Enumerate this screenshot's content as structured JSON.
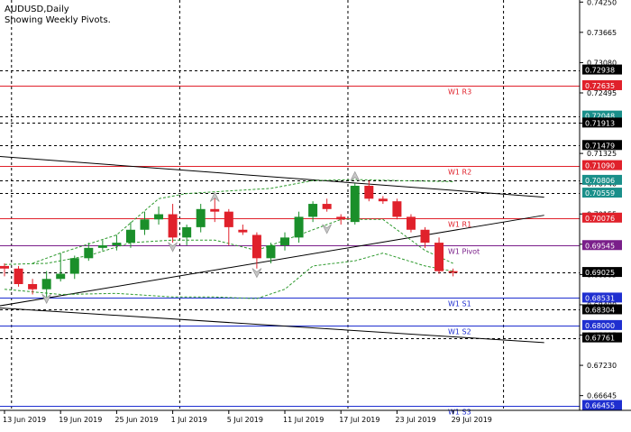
{
  "header": {
    "symbol": "AUDUSD,Daily",
    "subtitle": "Showing Weekly Pivots."
  },
  "colors": {
    "background": "#ffffff",
    "bull": "#1a8f2a",
    "bear": "#e0212b",
    "pivot_line": "#7a1f8a",
    "resistance_line": "#e0212b",
    "support_line": "#1f2fd0",
    "trend_line": "#000000",
    "envelope": "#2e9a2e",
    "grid": "#000000",
    "fractal": "#9a9a9a",
    "axis_text": "#000000"
  },
  "chart_data": {
    "type": "candlestick",
    "title": "AUDUSD,Daily",
    "ylim": [
      0.6636,
      0.7429
    ],
    "y_ticks": [
      "0.74250",
      "0.73665",
      "0.73080",
      "0.72495",
      "0.71910",
      "0.71325",
      "0.70740",
      "0.70155",
      "0.69570",
      "0.68985",
      "0.68400",
      "0.67815",
      "0.67230",
      "0.66645"
    ],
    "x_ticks": [
      {
        "label": "13 Jun 2019",
        "bar": 0
      },
      {
        "label": "19 Jun 2019",
        "bar": 4
      },
      {
        "label": "25 Jun 2019",
        "bar": 8
      },
      {
        "label": "1 Jul 2019",
        "bar": 12
      },
      {
        "label": "5 Jul 2019",
        "bar": 16
      },
      {
        "label": "11 Jul 2019",
        "bar": 20
      },
      {
        "label": "17 Jul 2019",
        "bar": 24
      },
      {
        "label": "23 Jul 2019",
        "bar": 28
      },
      {
        "label": "29 Jul 2019",
        "bar": 32
      }
    ],
    "grid_verticals_bars": [
      0.5,
      12.5,
      24.5
    ],
    "candles": [
      {
        "o": 0.6915,
        "h": 0.692,
        "l": 0.6895,
        "c": 0.691
      },
      {
        "o": 0.691,
        "h": 0.6915,
        "l": 0.6875,
        "c": 0.688
      },
      {
        "o": 0.688,
        "h": 0.689,
        "l": 0.686,
        "c": 0.687
      },
      {
        "o": 0.687,
        "h": 0.6905,
        "l": 0.6855,
        "c": 0.689
      },
      {
        "o": 0.689,
        "h": 0.694,
        "l": 0.6885,
        "c": 0.69
      },
      {
        "o": 0.69,
        "h": 0.6935,
        "l": 0.689,
        "c": 0.693
      },
      {
        "o": 0.693,
        "h": 0.696,
        "l": 0.6925,
        "c": 0.695
      },
      {
        "o": 0.695,
        "h": 0.6965,
        "l": 0.6945,
        "c": 0.6955
      },
      {
        "o": 0.6955,
        "h": 0.6975,
        "l": 0.6945,
        "c": 0.696
      },
      {
        "o": 0.696,
        "h": 0.7,
        "l": 0.695,
        "c": 0.6985
      },
      {
        "o": 0.6985,
        "h": 0.702,
        "l": 0.6975,
        "c": 0.7005
      },
      {
        "o": 0.7005,
        "h": 0.703,
        "l": 0.6995,
        "c": 0.7015
      },
      {
        "o": 0.7015,
        "h": 0.7035,
        "l": 0.696,
        "c": 0.697
      },
      {
        "o": 0.697,
        "h": 0.6995,
        "l": 0.6955,
        "c": 0.699
      },
      {
        "o": 0.699,
        "h": 0.7035,
        "l": 0.698,
        "c": 0.7025
      },
      {
        "o": 0.7025,
        "h": 0.705,
        "l": 0.7,
        "c": 0.702
      },
      {
        "o": 0.702,
        "h": 0.7025,
        "l": 0.6955,
        "c": 0.699
      },
      {
        "o": 0.6985,
        "h": 0.6995,
        "l": 0.6975,
        "c": 0.698
      },
      {
        "o": 0.6975,
        "h": 0.698,
        "l": 0.691,
        "c": 0.693
      },
      {
        "o": 0.693,
        "h": 0.696,
        "l": 0.692,
        "c": 0.6955
      },
      {
        "o": 0.6955,
        "h": 0.698,
        "l": 0.6945,
        "c": 0.697
      },
      {
        "o": 0.697,
        "h": 0.702,
        "l": 0.696,
        "c": 0.701
      },
      {
        "o": 0.701,
        "h": 0.704,
        "l": 0.7,
        "c": 0.7035
      },
      {
        "o": 0.7035,
        "h": 0.7045,
        "l": 0.702,
        "c": 0.7025
      },
      {
        "o": 0.701,
        "h": 0.7015,
        "l": 0.6995,
        "c": 0.7005
      },
      {
        "o": 0.7,
        "h": 0.7075,
        "l": 0.6995,
        "c": 0.707
      },
      {
        "o": 0.707,
        "h": 0.708,
        "l": 0.704,
        "c": 0.7045
      },
      {
        "o": 0.7045,
        "h": 0.705,
        "l": 0.7035,
        "c": 0.704
      },
      {
        "o": 0.704,
        "h": 0.7045,
        "l": 0.7005,
        "c": 0.701
      },
      {
        "o": 0.701,
        "h": 0.7015,
        "l": 0.698,
        "c": 0.6985
      },
      {
        "o": 0.6985,
        "h": 0.699,
        "l": 0.695,
        "c": 0.696
      },
      {
        "o": 0.696,
        "h": 0.697,
        "l": 0.69,
        "c": 0.6905
      },
      {
        "o": 0.6905,
        "h": 0.691,
        "l": 0.6895,
        "c": 0.6902
      }
    ],
    "pivot_levels": [
      {
        "name": "W1 R3",
        "value": 0.72635,
        "kind": "resistance"
      },
      {
        "name": "W1 R2",
        "value": 0.7109,
        "kind": "resistance"
      },
      {
        "name": "W1 R1",
        "value": 0.70076,
        "kind": "resistance"
      },
      {
        "name": "W1 Pivot",
        "value": 0.69545,
        "kind": "pivot"
      },
      {
        "name": "W1 S1",
        "value": 0.68531,
        "kind": "support"
      },
      {
        "name": "W1 S2",
        "value": 0.68,
        "kind": "support"
      },
      {
        "name": "W1 S3",
        "value": 0.66455,
        "kind": "support"
      }
    ],
    "dashed_levels": [
      {
        "value": 0.72938,
        "tag": "0.72938"
      },
      {
        "value": 0.72048,
        "tag": "0.72048"
      },
      {
        "value": 0.71913,
        "tag": "0.71913"
      },
      {
        "value": 0.71479,
        "tag": "0.71479"
      },
      {
        "value": 0.70806,
        "tag": "0.70806"
      },
      {
        "value": 0.70559,
        "tag": "0.70559"
      },
      {
        "value": 0.69025,
        "tag": "0.69025"
      },
      {
        "value": 0.68304,
        "tag": "0.68304"
      },
      {
        "value": 0.67761,
        "tag": "0.67761"
      }
    ],
    "trend_lines": [
      {
        "from": {
          "bar": -1,
          "value": 0.7128
        },
        "to": {
          "bar": 38.5,
          "value": 0.7048
        }
      },
      {
        "from": {
          "bar": -1,
          "value": 0.6835
        },
        "to": {
          "bar": 38.5,
          "value": 0.7013
        }
      },
      {
        "from": {
          "bar": -1,
          "value": 0.6835
        },
        "to": {
          "bar": 38.5,
          "value": 0.6767
        }
      }
    ],
    "envelope_upper": [
      {
        "bar": 2,
        "value": 0.692
      },
      {
        "bar": 4,
        "value": 0.694
      },
      {
        "bar": 8,
        "value": 0.6975
      },
      {
        "bar": 11,
        "value": 0.7045
      },
      {
        "bar": 13,
        "value": 0.7055
      },
      {
        "bar": 16,
        "value": 0.706
      },
      {
        "bar": 19,
        "value": 0.7065
      },
      {
        "bar": 22,
        "value": 0.708
      },
      {
        "bar": 25,
        "value": 0.7082
      },
      {
        "bar": 28,
        "value": 0.708
      },
      {
        "bar": 32,
        "value": 0.7078
      }
    ],
    "envelope_lower": [
      {
        "bar": 0,
        "value": 0.687
      },
      {
        "bar": 4,
        "value": 0.686
      },
      {
        "bar": 8,
        "value": 0.6862
      },
      {
        "bar": 12,
        "value": 0.6855
      },
      {
        "bar": 15,
        "value": 0.6855
      },
      {
        "bar": 18,
        "value": 0.6852
      },
      {
        "bar": 20,
        "value": 0.687
      },
      {
        "bar": 22,
        "value": 0.6915
      },
      {
        "bar": 25,
        "value": 0.6925
      },
      {
        "bar": 27,
        "value": 0.694
      },
      {
        "bar": 30,
        "value": 0.6915
      },
      {
        "bar": 32,
        "value": 0.6905
      }
    ],
    "envelope_middle": [
      {
        "bar": 0,
        "value": 0.6918
      },
      {
        "bar": 3,
        "value": 0.692
      },
      {
        "bar": 6,
        "value": 0.6935
      },
      {
        "bar": 9,
        "value": 0.696
      },
      {
        "bar": 12,
        "value": 0.6965
      },
      {
        "bar": 15,
        "value": 0.6965
      },
      {
        "bar": 18,
        "value": 0.6945
      },
      {
        "bar": 21,
        "value": 0.6975
      },
      {
        "bar": 24,
        "value": 0.7005
      },
      {
        "bar": 27,
        "value": 0.7005
      },
      {
        "bar": 30,
        "value": 0.6945
      },
      {
        "bar": 32,
        "value": 0.692
      }
    ],
    "fractals": [
      {
        "bar": 3,
        "value": 0.685,
        "dir": "down"
      },
      {
        "bar": 12,
        "value": 0.695,
        "dir": "down"
      },
      {
        "bar": 15,
        "value": 0.705,
        "dir": "up"
      },
      {
        "bar": 18,
        "value": 0.69,
        "dir": "down"
      },
      {
        "bar": 23,
        "value": 0.6985,
        "dir": "down"
      },
      {
        "bar": 25,
        "value": 0.709,
        "dir": "up"
      }
    ]
  }
}
